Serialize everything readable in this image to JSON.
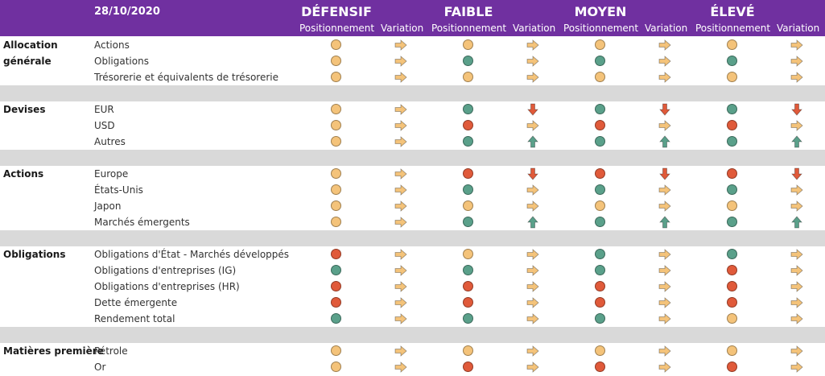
{
  "header": {
    "date": "28/10/2020",
    "profiles": [
      {
        "name": "DÉFENSIF",
        "pos_label": "Positionnement",
        "var_label": "Variation"
      },
      {
        "name": "FAIBLE",
        "pos_label": "Positionnement",
        "var_label": "Variation"
      },
      {
        "name": "MOYEN",
        "pos_label": "Positionnement",
        "var_label": "Variation"
      },
      {
        "name": "ÉLEVÉ",
        "pos_label": "Positionnement",
        "var_label": "Variation"
      }
    ]
  },
  "colors": {
    "header_bg": "#7030a0",
    "separator": "#d9d9d9",
    "neutral": "#f4c37a",
    "positive": "#5aa08a",
    "negative": "#e05a3a"
  },
  "legend_note": "Positions: N = neutral (amber), P = positive (green), X = negative (red). Variations: R = right arrow, D = down arrow, U = up arrow.",
  "sections": [
    {
      "category": "Allocation générale",
      "rows": [
        {
          "label": "Actions",
          "pos": [
            "N",
            "N",
            "N",
            "N"
          ],
          "var": [
            "R",
            "R",
            "R",
            "R"
          ]
        },
        {
          "label": "Obligations",
          "pos": [
            "N",
            "P",
            "P",
            "P"
          ],
          "var": [
            "R",
            "R",
            "R",
            "R"
          ]
        },
        {
          "label": "Trésorerie et équivalents de trésorerie",
          "pos": [
            "N",
            "N",
            "N",
            "N"
          ],
          "var": [
            "R",
            "R",
            "R",
            "R"
          ]
        }
      ]
    },
    {
      "category": "Devises",
      "rows": [
        {
          "label": "EUR",
          "pos": [
            "N",
            "P",
            "P",
            "P"
          ],
          "var": [
            "R",
            "D",
            "D",
            "D"
          ]
        },
        {
          "label": "USD",
          "pos": [
            "N",
            "X",
            "X",
            "X"
          ],
          "var": [
            "R",
            "R",
            "R",
            "R"
          ]
        },
        {
          "label": "Autres",
          "pos": [
            "N",
            "P",
            "P",
            "P"
          ],
          "var": [
            "R",
            "U",
            "U",
            "U"
          ]
        }
      ]
    },
    {
      "category": "Actions",
      "rows": [
        {
          "label": "Europe",
          "pos": [
            "N",
            "X",
            "X",
            "X"
          ],
          "var": [
            "R",
            "D",
            "D",
            "D"
          ]
        },
        {
          "label": "États-Unis",
          "pos": [
            "N",
            "P",
            "P",
            "P"
          ],
          "var": [
            "R",
            "R",
            "R",
            "R"
          ]
        },
        {
          "label": "Japon",
          "pos": [
            "N",
            "N",
            "N",
            "N"
          ],
          "var": [
            "R",
            "R",
            "R",
            "R"
          ]
        },
        {
          "label": "Marchés émergents",
          "pos": [
            "N",
            "P",
            "P",
            "P"
          ],
          "var": [
            "R",
            "U",
            "U",
            "U"
          ]
        }
      ]
    },
    {
      "category": "Obligations",
      "rows": [
        {
          "label": "Obligations d'État - Marchés développés",
          "pos": [
            "X",
            "N",
            "P",
            "P"
          ],
          "var": [
            "R",
            "R",
            "R",
            "R"
          ]
        },
        {
          "label": "Obligations d'entreprises (IG)",
          "pos": [
            "P",
            "P",
            "P",
            "X"
          ],
          "var": [
            "R",
            "R",
            "R",
            "R"
          ]
        },
        {
          "label": "Obligations d'entreprises (HR)",
          "pos": [
            "X",
            "X",
            "X",
            "X"
          ],
          "var": [
            "R",
            "R",
            "R",
            "R"
          ]
        },
        {
          "label": "Dette émergente",
          "pos": [
            "X",
            "X",
            "X",
            "X"
          ],
          "var": [
            "R",
            "R",
            "R",
            "R"
          ]
        },
        {
          "label": "Rendement total",
          "pos": [
            "P",
            "P",
            "P",
            "N"
          ],
          "var": [
            "R",
            "R",
            "R",
            "R"
          ]
        }
      ]
    },
    {
      "category": "Matières première",
      "rows": [
        {
          "label": "Pétrole",
          "pos": [
            "N",
            "N",
            "N",
            "N"
          ],
          "var": [
            "R",
            "R",
            "R",
            "R"
          ]
        },
        {
          "label": "Or",
          "pos": [
            "N",
            "X",
            "X",
            "X"
          ],
          "var": [
            "R",
            "R",
            "R",
            "R"
          ]
        }
      ]
    }
  ]
}
